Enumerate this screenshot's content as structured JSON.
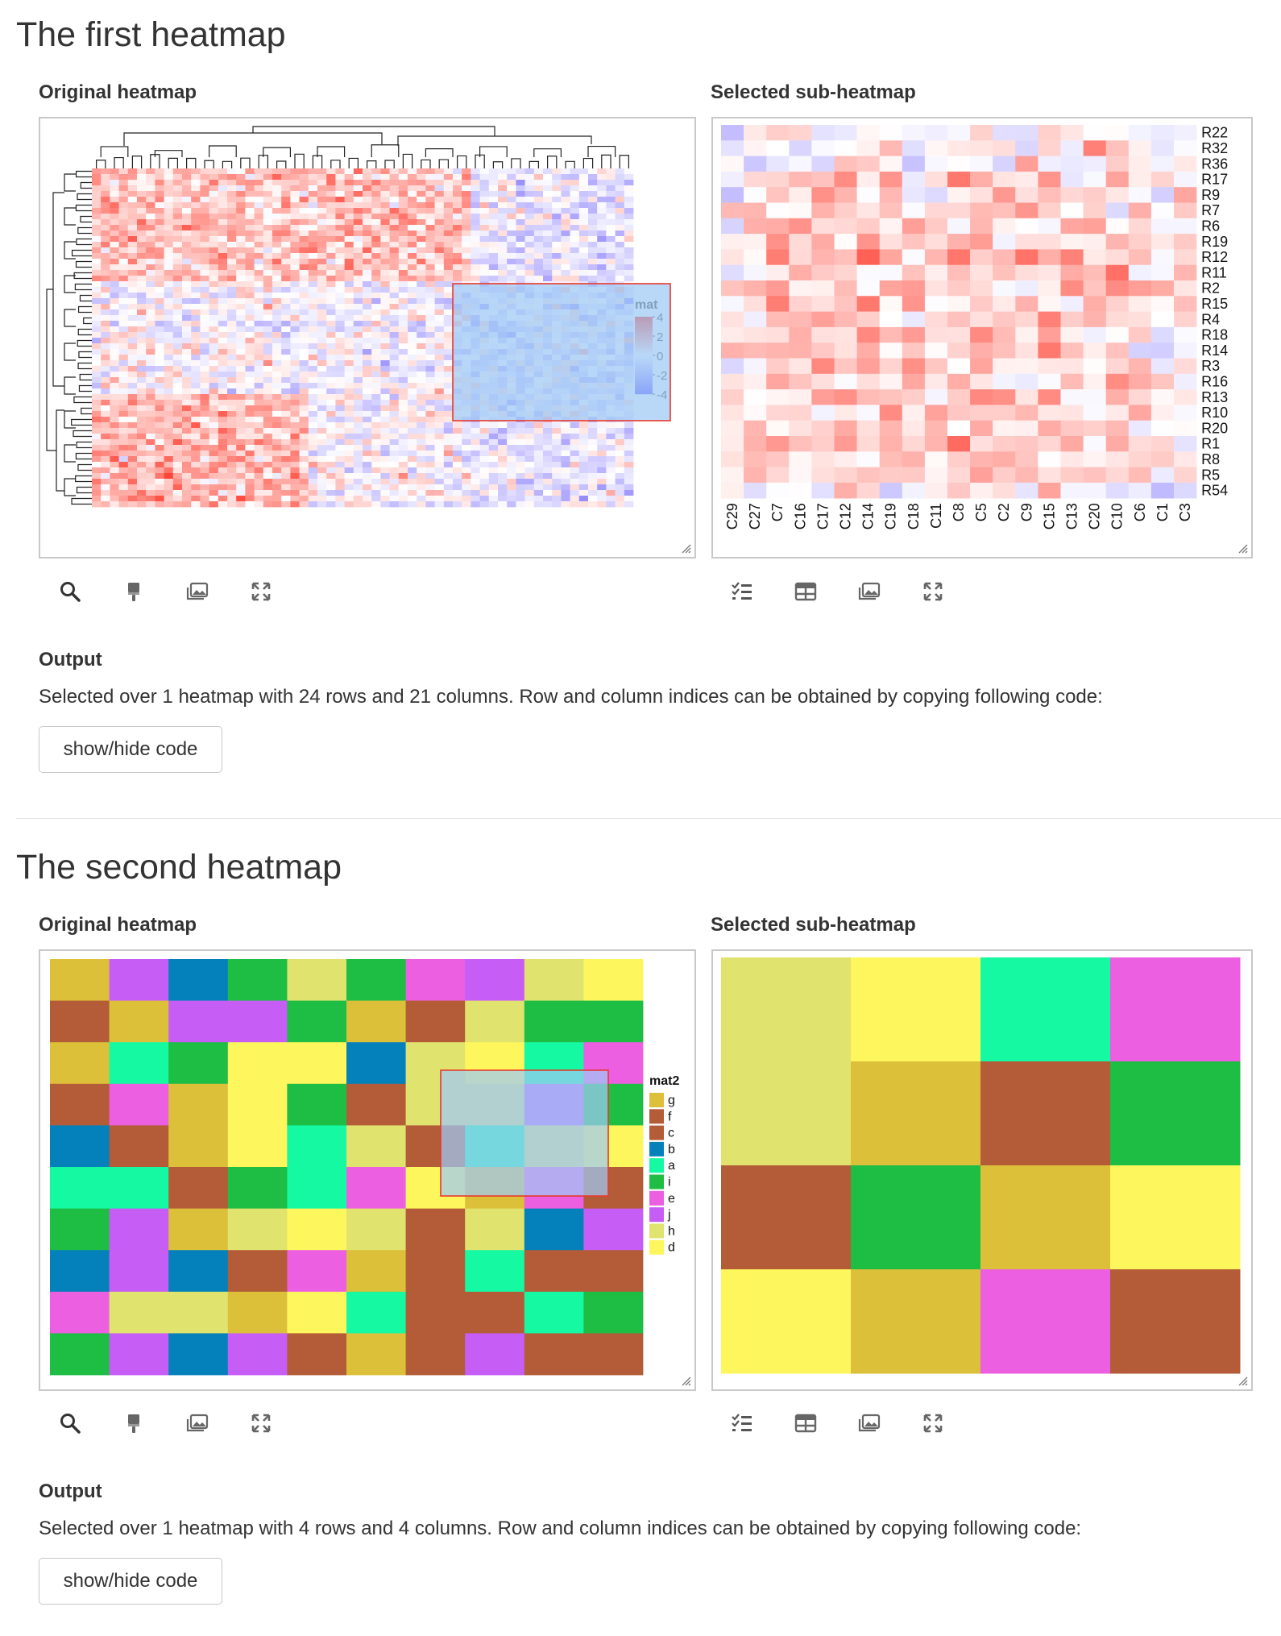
{
  "sections": [
    {
      "title": "The first heatmap",
      "original_label": "Original heatmap",
      "sub_label": "Selected sub-heatmap",
      "output_title": "Output",
      "output_text": "Selected over 1 heatmap with 24 rows and 21 columns. Row and column indices can be obtained by copying following code:",
      "code_button": "show/hide code",
      "left_tools": [
        "search-icon",
        "brush-icon",
        "image-icon",
        "expand-icon"
      ],
      "right_tools": [
        "list-check-icon",
        "table-icon",
        "image-icon",
        "expand-icon"
      ],
      "legend": {
        "title": "mat",
        "ticks": [
          "4",
          "2",
          "0",
          "-2",
          "-4"
        ]
      },
      "sub_rows": [
        "R22",
        "R32",
        "R36",
        "R17",
        "R9",
        "R7",
        "R6",
        "R19",
        "R12",
        "R11",
        "R2",
        "R15",
        "R4",
        "R18",
        "R14",
        "R3",
        "R16",
        "R13",
        "R10",
        "R20",
        "R1",
        "R8",
        "R5",
        "R54"
      ],
      "sub_cols": [
        "C29",
        "C27",
        "C7",
        "C16",
        "C17",
        "C12",
        "C14",
        "C19",
        "C18",
        "C11",
        "C8",
        "C5",
        "C2",
        "C9",
        "C15",
        "C13",
        "C20",
        "C10",
        "C6",
        "C1",
        "C3"
      ]
    },
    {
      "title": "The second heatmap",
      "original_label": "Original heatmap",
      "sub_label": "Selected sub-heatmap",
      "output_title": "Output",
      "output_text": "Selected over 1 heatmap with 4 rows and 4 columns. Row and column indices can be obtained by copying following code:",
      "code_button": "show/hide code",
      "left_tools": [
        "search-icon",
        "brush-icon",
        "image-icon",
        "expand-icon"
      ],
      "right_tools": [
        "list-check-icon",
        "table-icon",
        "image-icon",
        "expand-icon"
      ],
      "legend": {
        "title": "mat2",
        "keys": [
          "g",
          "f",
          "c",
          "b",
          "a",
          "i",
          "e",
          "j",
          "h",
          "d"
        ]
      },
      "palette": {
        "g": "#DDC03A",
        "f": "#B35C37",
        "c": "#B35C37",
        "b": "#0481BA",
        "a": "#15F9A3",
        "i": "#1EBD44",
        "e": "#EB5FE0",
        "j": "#C65EF6",
        "h": "#E0E36E",
        "d": "#FDF65C"
      },
      "grid": [
        [
          "g",
          "j",
          "b",
          "i",
          "h",
          "i",
          "e",
          "j",
          "h",
          "d"
        ],
        [
          "f",
          "g",
          "j",
          "j",
          "i",
          "g",
          "f",
          "h",
          "i",
          "i"
        ],
        [
          "g",
          "a",
          "i",
          "d",
          "d",
          "b",
          "h",
          "d",
          "a",
          "e"
        ],
        [
          "f",
          "e",
          "g",
          "d",
          "i",
          "f",
          "h",
          "h",
          "j",
          "i"
        ],
        [
          "b",
          "f",
          "g",
          "d",
          "a",
          "h",
          "f",
          "a",
          "h",
          "d"
        ],
        [
          "a",
          "a",
          "f",
          "i",
          "a",
          "e",
          "d",
          "g",
          "e",
          "f"
        ],
        [
          "i",
          "j",
          "g",
          "h",
          "d",
          "h",
          "f",
          "h",
          "b",
          "j"
        ],
        [
          "b",
          "j",
          "b",
          "f",
          "e",
          "g",
          "f",
          "a",
          "f",
          "f"
        ],
        [
          "e",
          "h",
          "h",
          "g",
          "d",
          "a",
          "f",
          "f",
          "a",
          "i"
        ],
        [
          "i",
          "j",
          "b",
          "j",
          "f",
          "g",
          "f",
          "j",
          "f",
          "f"
        ]
      ],
      "sub_grid": [
        [
          "h",
          "d",
          "a",
          "e"
        ],
        [
          "h",
          "g",
          "f",
          "i"
        ],
        [
          "f",
          "i",
          "g",
          "d"
        ],
        [
          "d",
          "g",
          "e",
          "f"
        ]
      ]
    }
  ],
  "colors": {
    "accent_red": "#E8392C",
    "selection_fill": "#9EC9F5",
    "low": "#5B4BFF",
    "high": "#FF2A1A"
  }
}
